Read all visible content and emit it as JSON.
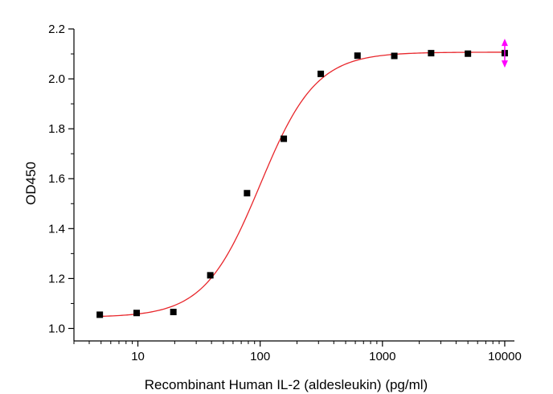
{
  "chart_data": {
    "type": "scatter",
    "xlabel": "Recombinant Human IL-2 (aldesleukin) (pg/ml)",
    "ylabel": "OD450",
    "xscale": "log",
    "xlim": [
      3,
      12000
    ],
    "ylim": [
      0.95,
      2.2
    ],
    "x_ticks": [
      10,
      100,
      1000,
      10000
    ],
    "x_tick_labels": [
      "10",
      "100",
      "1000",
      "10000"
    ],
    "y_ticks": [
      1.0,
      1.2,
      1.4,
      1.6,
      1.8,
      2.0,
      2.2
    ],
    "y_tick_labels": [
      "1.0",
      "1.2",
      "1.4",
      "1.6",
      "1.8",
      "2.0",
      "2.2"
    ],
    "grid": false,
    "series": [
      {
        "kind": "points",
        "marker": "square",
        "color": "#000000",
        "x": [
          4.88,
          9.77,
          19.5,
          39.1,
          78.1,
          156,
          313,
          625,
          1250,
          2500,
          5000,
          10000
        ],
        "y": [
          1.055,
          1.062,
          1.066,
          1.213,
          1.542,
          1.76,
          2.02,
          2.093,
          2.092,
          2.103,
          2.101,
          2.103
        ]
      },
      {
        "kind": "fit",
        "model": "4PL",
        "color": "#e8262b",
        "params": {
          "bottom": 1.045,
          "top": 2.107,
          "ec50": 100,
          "hill": 1.9
        },
        "x_range": [
          4.88,
          10000
        ]
      }
    ],
    "annotations": [
      {
        "kind": "double-arrow",
        "color": "#ff00ff",
        "x": 10000,
        "y": 2.103
      }
    ]
  }
}
